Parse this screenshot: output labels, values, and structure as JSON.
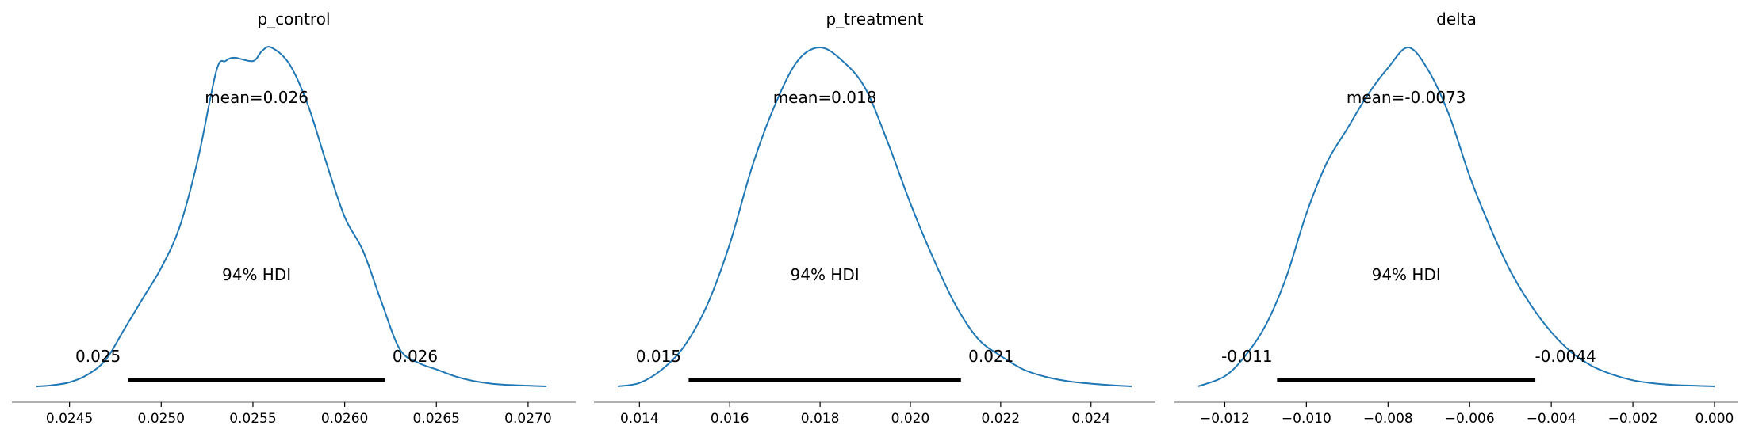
{
  "colors": {
    "kde_line": "#1f77b4",
    "hdi_bar": "#000000",
    "axis": "#808080"
  },
  "chart_data": [
    {
      "type": "line",
      "title": "p_control",
      "xlim": [
        0.02432,
        0.02713
      ],
      "x_ticks": [
        0.0245,
        0.025,
        0.0255,
        0.026,
        0.0265,
        0.027
      ],
      "x_tick_labels": [
        "0.0245",
        "0.0250",
        "0.0255",
        "0.0260",
        "0.0265",
        "0.0270"
      ],
      "mean_label": "mean=0.026",
      "hdi_label": "94% HDI",
      "hdi": [
        0.02482,
        0.02622
      ],
      "hdi_low_label": "0.025",
      "hdi_high_label": "0.026",
      "density": {
        "x": [
          0.02432,
          0.0244,
          0.0245,
          0.0246,
          0.0247,
          0.0248,
          0.0249,
          0.025,
          0.0251,
          0.0252,
          0.0253,
          0.02535,
          0.0254,
          0.0255,
          0.02555,
          0.0256,
          0.0257,
          0.0258,
          0.0259,
          0.026,
          0.0261,
          0.0262,
          0.0263,
          0.0264,
          0.0265,
          0.0266,
          0.0267,
          0.0268,
          0.0269,
          0.027,
          0.0271
        ],
        "y": [
          0.0,
          0.003,
          0.012,
          0.035,
          0.08,
          0.17,
          0.26,
          0.35,
          0.47,
          0.67,
          0.93,
          0.96,
          0.97,
          0.96,
          0.99,
          1.0,
          0.95,
          0.83,
          0.66,
          0.5,
          0.4,
          0.25,
          0.11,
          0.07,
          0.05,
          0.03,
          0.016,
          0.008,
          0.004,
          0.002,
          0.0
        ]
      }
    },
    {
      "type": "line",
      "title": "p_treatment",
      "xlim": [
        0.01352,
        0.0249
      ],
      "x_ticks": [
        0.014,
        0.016,
        0.018,
        0.02,
        0.022,
        0.024
      ],
      "x_tick_labels": [
        "0.014",
        "0.016",
        "0.018",
        "0.020",
        "0.022",
        "0.024"
      ],
      "mean_label": "mean=0.018",
      "hdi_label": "94% HDI",
      "hdi": [
        0.01509,
        0.02112
      ],
      "hdi_low_label": "0.015",
      "hdi_high_label": "0.021",
      "density": {
        "x": [
          0.01352,
          0.014,
          0.0145,
          0.015,
          0.0155,
          0.016,
          0.0165,
          0.017,
          0.0175,
          0.018,
          0.0185,
          0.019,
          0.0195,
          0.02,
          0.0205,
          0.021,
          0.0215,
          0.022,
          0.0225,
          0.023,
          0.0235,
          0.024,
          0.0245,
          0.0249
        ],
        "y": [
          0.0,
          0.01,
          0.05,
          0.12,
          0.24,
          0.42,
          0.65,
          0.83,
          0.96,
          1.0,
          0.96,
          0.88,
          0.72,
          0.54,
          0.38,
          0.24,
          0.14,
          0.09,
          0.05,
          0.028,
          0.015,
          0.008,
          0.003,
          0.0
        ]
      }
    },
    {
      "type": "line",
      "title": "delta",
      "xlim": [
        -0.01265,
        0.0
      ],
      "x_ticks": [
        -0.012,
        -0.01,
        -0.008,
        -0.006,
        -0.004,
        -0.002,
        0.0
      ],
      "x_tick_labels": [
        "−0.012",
        "−0.010",
        "−0.008",
        "−0.006",
        "−0.004",
        "−0.002",
        "0.000"
      ],
      "mean_label": "mean=-0.0073",
      "hdi_label": "94% HDI",
      "hdi": [
        -0.01072,
        -0.00439
      ],
      "hdi_low_label": "-0.011",
      "hdi_high_label": "-0.0044",
      "density": {
        "x": [
          -0.01265,
          -0.012,
          -0.0115,
          -0.011,
          -0.0105,
          -0.01,
          -0.0095,
          -0.009,
          -0.0085,
          -0.008,
          -0.0075,
          -0.007,
          -0.0065,
          -0.006,
          -0.0055,
          -0.005,
          -0.0045,
          -0.004,
          -0.0035,
          -0.003,
          -0.0025,
          -0.002,
          -0.0015,
          -0.001,
          -0.0005,
          0.0
        ],
        "y": [
          0.0,
          0.03,
          0.09,
          0.18,
          0.32,
          0.51,
          0.66,
          0.76,
          0.86,
          0.94,
          1.0,
          0.93,
          0.8,
          0.62,
          0.47,
          0.34,
          0.24,
          0.16,
          0.1,
          0.06,
          0.035,
          0.018,
          0.009,
          0.004,
          0.002,
          0.0
        ]
      }
    }
  ]
}
